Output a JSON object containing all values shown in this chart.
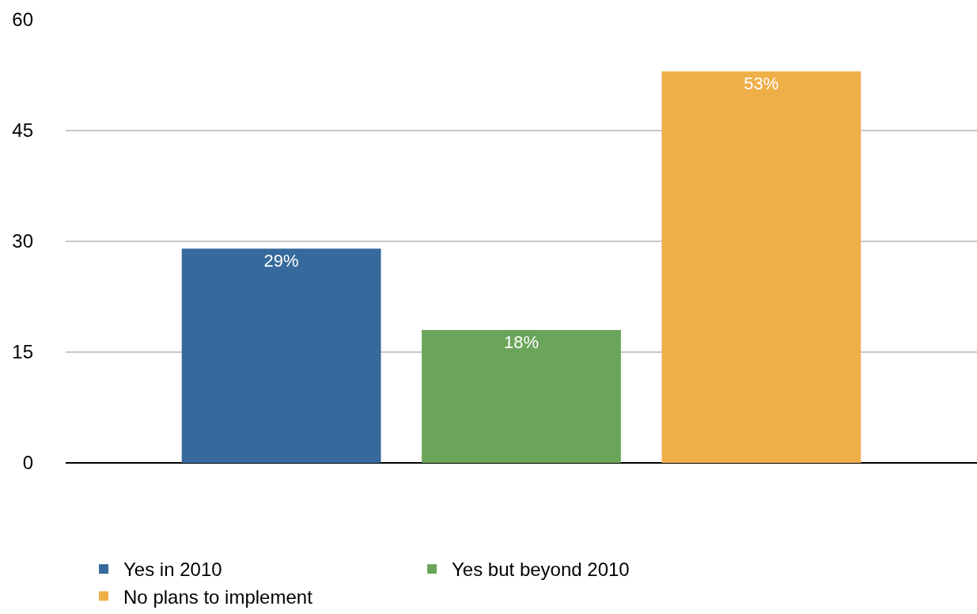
{
  "chart_data": {
    "type": "bar",
    "categories": [
      null
    ],
    "series": [
      {
        "name": "Yes in 2010",
        "color": "#366a9c",
        "values": [
          29
        ],
        "value_labels": [
          "29%"
        ]
      },
      {
        "name": "Yes but beyond 2010",
        "color": "#6ba55a",
        "values": [
          18
        ],
        "value_labels": [
          "18%"
        ]
      },
      {
        "name": "No plans to implement",
        "color": "#efaf48",
        "values": [
          53
        ],
        "value_labels": [
          "53%"
        ]
      }
    ],
    "ylim": [
      0,
      60
    ],
    "yticks": [
      0,
      15,
      30,
      45,
      60
    ],
    "grid": "y",
    "legend": "bottom",
    "tick_labels": "y"
  }
}
